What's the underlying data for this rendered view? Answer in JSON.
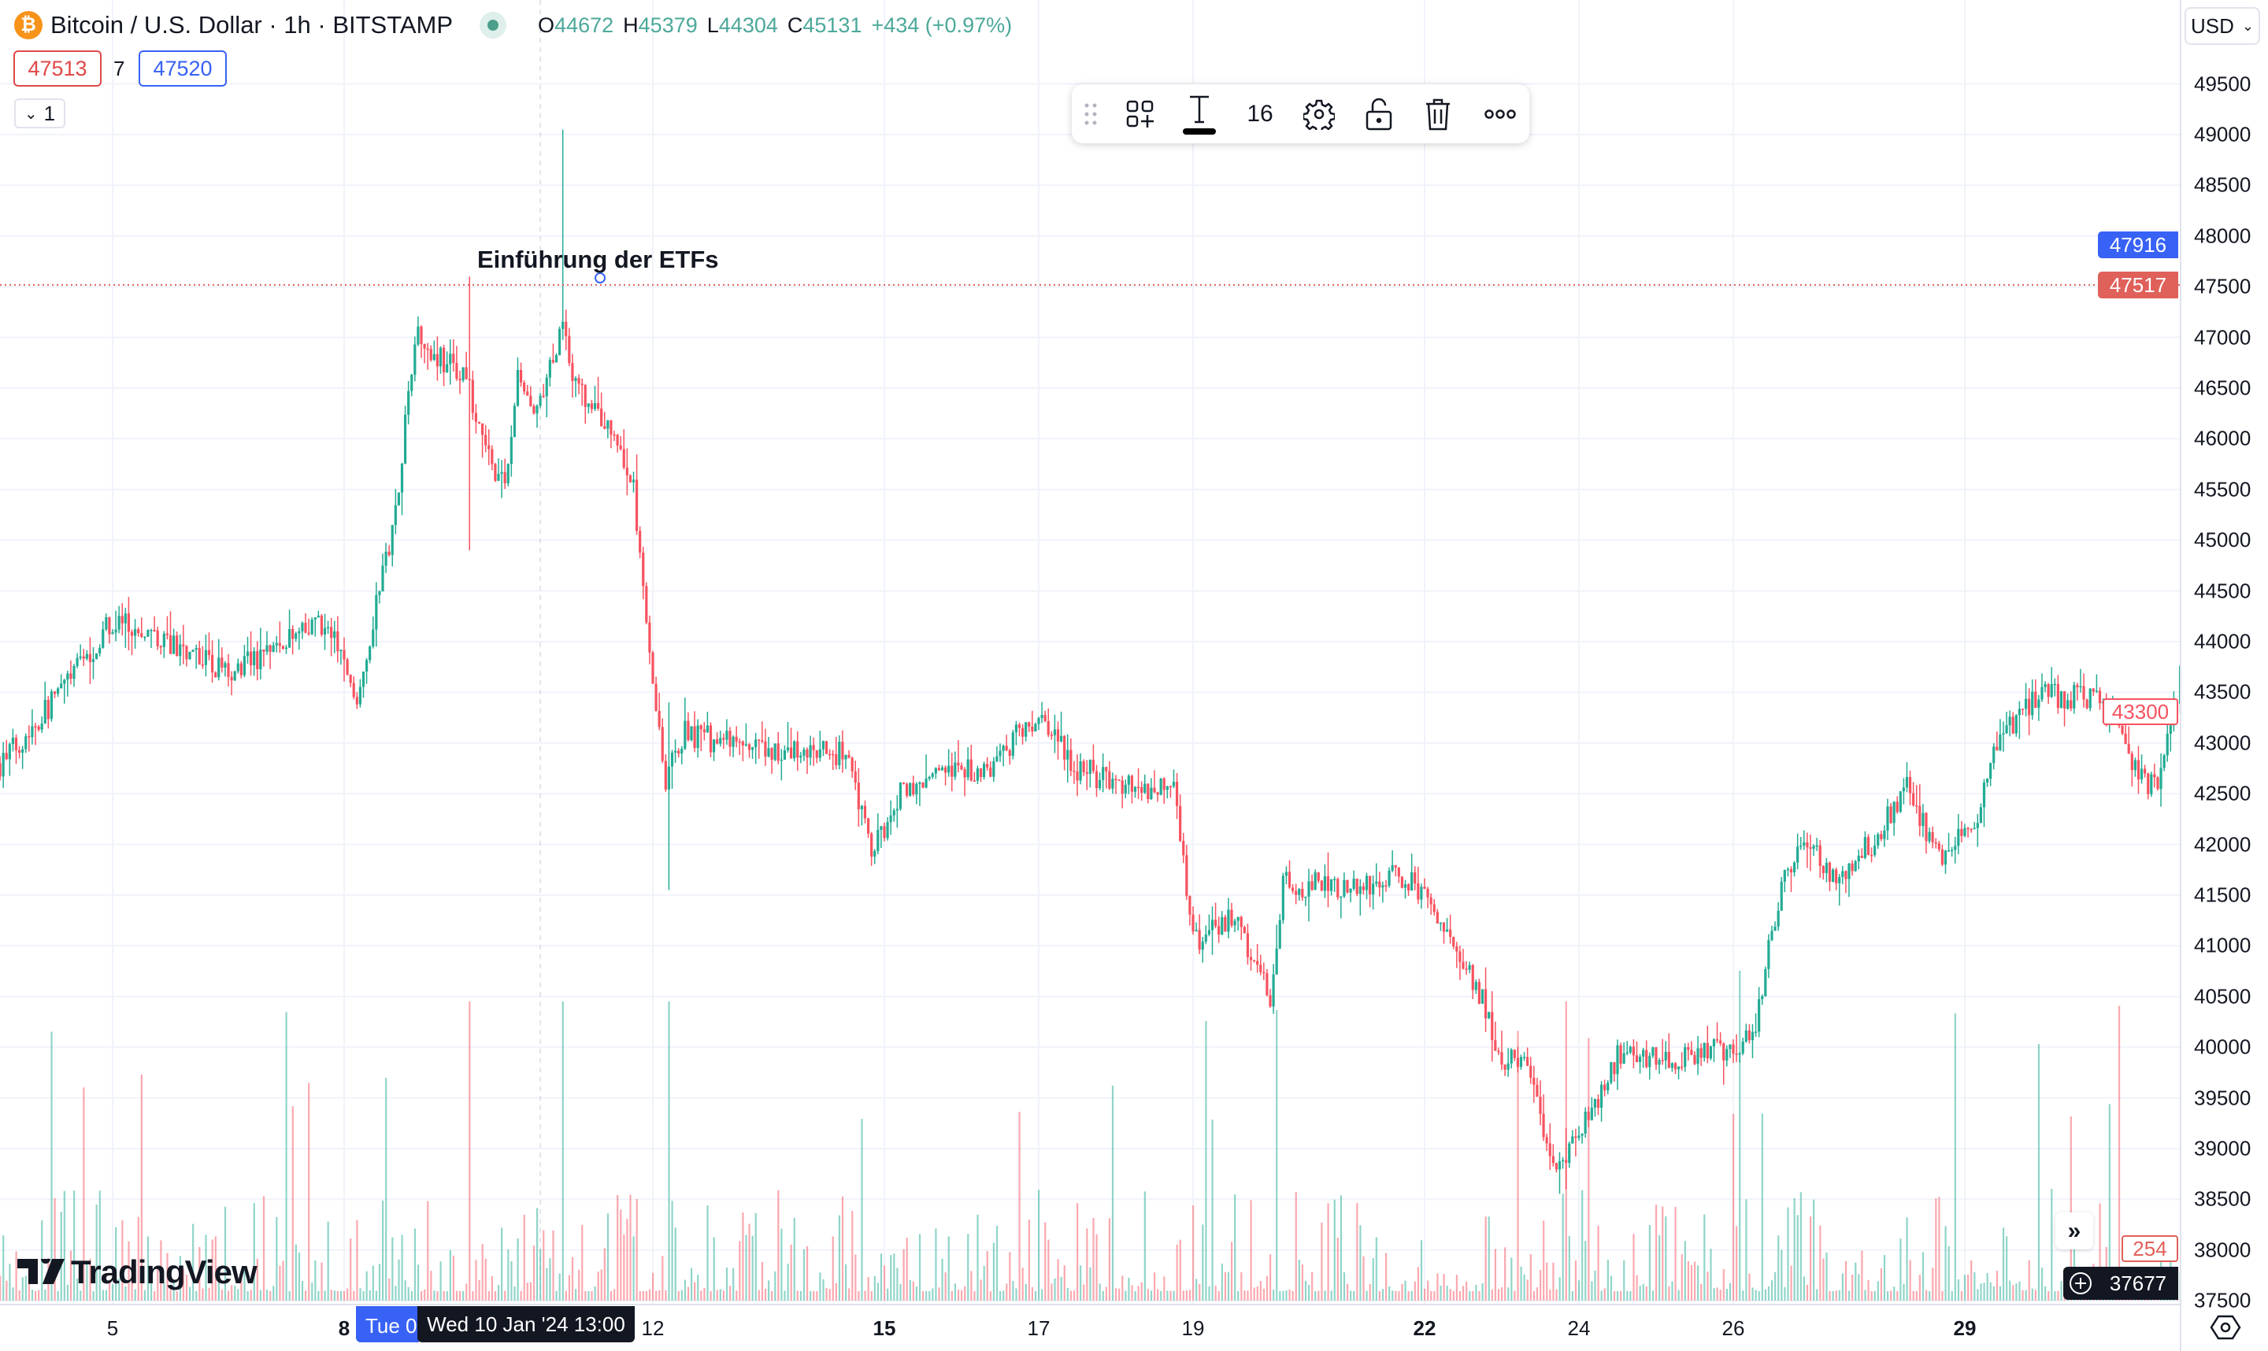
{
  "header": {
    "symbol_icon": "bitcoin-icon",
    "title": "Bitcoin / U.S. Dollar · 1h · BITSTAMP",
    "ohlc": {
      "o_label": "O",
      "o": "44672",
      "h_label": "H",
      "h": "45379",
      "l_label": "L",
      "l": "44304",
      "c_label": "C",
      "c": "45131",
      "change": "+434 (+0.97%)"
    }
  },
  "order": {
    "sell": "47513",
    "spread": "7",
    "buy": "47520"
  },
  "indicators_toggle": {
    "icon": "chevron-down-icon",
    "count": "1"
  },
  "toolbar": {
    "items": [
      "drag-handle-icon",
      "add-to-template-icon",
      "text-color-icon",
      "settings-icon",
      "unlock-icon",
      "trash-icon",
      "more-icon"
    ],
    "font_size": "16"
  },
  "annotation": {
    "text": "Einführung der ETFs",
    "price": 47517
  },
  "currency": "USD",
  "colors": {
    "up": "#22ab94",
    "down": "#f7525f",
    "accent": "#3862f5",
    "crosshair_label": "#131722"
  },
  "price_axis": {
    "ticks": [
      "49500",
      "49000",
      "48500",
      "48000",
      "47500",
      "47000",
      "46500",
      "46000",
      "45500",
      "45000",
      "44500",
      "44000",
      "43500",
      "43000",
      "42500",
      "42000",
      "41500",
      "41000",
      "40500",
      "40000",
      "39500",
      "39000",
      "38500",
      "38000",
      "37500"
    ],
    "labels": {
      "blue": "47916",
      "red": "47517",
      "last": "43300",
      "volume": "254",
      "crosshair": "37677"
    }
  },
  "time_axis": {
    "ticks": [
      {
        "label": "5",
        "day": 5,
        "bold": false
      },
      {
        "label": "8",
        "day": 8,
        "bold": true
      },
      {
        "label": "12",
        "day": 12,
        "bold": false
      },
      {
        "label": "15",
        "day": 15,
        "bold": true
      },
      {
        "label": "17",
        "day": 17,
        "bold": false
      },
      {
        "label": "19",
        "day": 19,
        "bold": false
      },
      {
        "label": "22",
        "day": 22,
        "bold": true
      },
      {
        "label": "24",
        "day": 24,
        "bold": false
      },
      {
        "label": "26",
        "day": 26,
        "bold": false
      },
      {
        "label": "29",
        "day": 29,
        "bold": true
      }
    ],
    "selected_label": "Tue 0",
    "crosshair_label": "Wed 10 Jan '24  13:00"
  },
  "branding": "TradingView",
  "chart_data": {
    "type": "candlestick",
    "interval": "1h",
    "period": "Jan 2024",
    "path": [
      [
        "01-03 13",
        42800
      ],
      [
        "01-04 00",
        43200
      ],
      [
        "01-05 00",
        44200
      ],
      [
        "01-05 12",
        44050
      ],
      [
        "01-06 00",
        43900
      ],
      [
        "01-06 12",
        43700
      ],
      [
        "01-07 06",
        44000
      ],
      [
        "01-07 18",
        44200
      ],
      [
        "01-08 04",
        43500
      ],
      [
        "01-08 10",
        44350
      ],
      [
        "01-08 16",
        45300
      ],
      [
        "01-08 22",
        47050
      ],
      [
        "01-09 06",
        46800
      ],
      [
        "01-09 14",
        46600
      ],
      [
        "01-09 18",
        46050
      ],
      [
        "01-10 02",
        45500
      ],
      [
        "01-10 06",
        46600
      ],
      [
        "01-10 12",
        46200
      ],
      [
        "01-10 20",
        47200
      ],
      [
        "01-11 00",
        46500
      ],
      [
        "01-11 12",
        46050
      ],
      [
        "01-11 18",
        45500
      ],
      [
        "01-12 00",
        43650
      ],
      [
        "01-12 04",
        42650
      ],
      [
        "01-12 10",
        43100
      ],
      [
        "01-13 12",
        42900
      ],
      [
        "01-14 12",
        42900
      ],
      [
        "01-14 20",
        41900
      ],
      [
        "01-15 06",
        42600
      ],
      [
        "01-16 08",
        42750
      ],
      [
        "01-17 00",
        43300
      ],
      [
        "01-17 12",
        42750
      ],
      [
        "01-18 06",
        42550
      ],
      [
        "01-18 18",
        42600
      ],
      [
        "01-19 00",
        41050
      ],
      [
        "01-19 12",
        41300
      ],
      [
        "01-20 00",
        40500
      ],
      [
        "01-20 04",
        41600
      ],
      [
        "01-21 06",
        41600
      ],
      [
        "01-21 18",
        41700
      ],
      [
        "01-22 06",
        41200
      ],
      [
        "01-22 18",
        40500
      ],
      [
        "01-23 00",
        39800
      ],
      [
        "01-23 06",
        39900
      ],
      [
        "01-23 18",
        38750
      ],
      [
        "01-24 06",
        39500
      ],
      [
        "01-24 12",
        39900
      ],
      [
        "01-25 06",
        39900
      ],
      [
        "01-26 06",
        40050
      ],
      [
        "01-26 12",
        41200
      ],
      [
        "01-26 20",
        42050
      ],
      [
        "01-27 08",
        41700
      ],
      [
        "01-27 20",
        42050
      ],
      [
        "01-28 06",
        42550
      ],
      [
        "01-28 16",
        41850
      ],
      [
        "01-29 04",
        42200
      ],
      [
        "01-29 10",
        43050
      ],
      [
        "01-30 00",
        43500
      ],
      [
        "01-30 18",
        43400
      ],
      [
        "01-31 06",
        42750
      ],
      [
        "01-31 12",
        42500
      ],
      [
        "01-31 19",
        43650
      ]
    ],
    "spikes": [
      {
        "t": "01-10 20",
        "high": 49050,
        "low": 47000
      },
      {
        "t": "01-09 15",
        "high": 47600,
        "low": 44900
      },
      {
        "t": "01-12 05",
        "high": 43400,
        "low": 41550
      },
      {
        "t": "01-23 20",
        "high": 39200,
        "low": 38600
      }
    ],
    "ylim": [
      37400,
      49800
    ]
  }
}
